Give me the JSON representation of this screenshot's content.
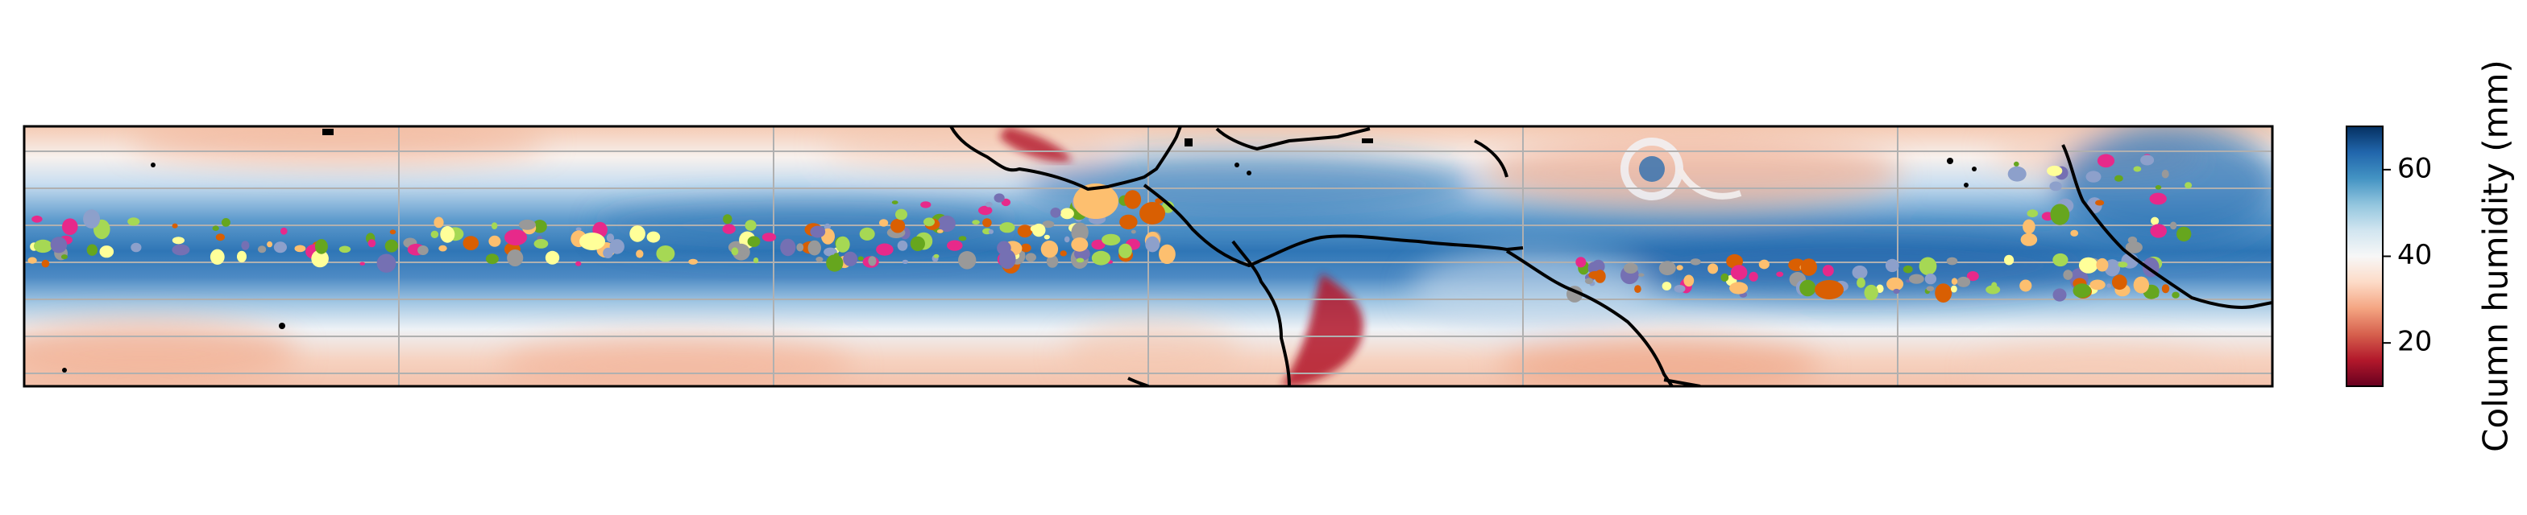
{
  "map": {
    "field": "column humidity",
    "projection": "equatorial strip, Pacific to Atlantic",
    "gridlines": true,
    "gridline_color": "#b0b0b0",
    "coastline_color": "#000000",
    "cloud_object_colors": [
      "#8da0cb",
      "#a6d854",
      "#e7298a",
      "#d95f02",
      "#ffff99",
      "#66a61e",
      "#fdbf6f",
      "#7570b3",
      "#999999"
    ]
  },
  "colorbar": {
    "label": "Column humidity (mm)",
    "ticks": [
      "20",
      "40",
      "60"
    ],
    "tick_values": [
      20,
      40,
      60
    ],
    "range": [
      10,
      70
    ],
    "colormap": "RdBu",
    "colors": [
      "#67001f",
      "#b2182b",
      "#d6604d",
      "#f4a582",
      "#fddbc7",
      "#f7f7f7",
      "#d1e5f0",
      "#92c5de",
      "#4393c3",
      "#2166ac",
      "#053061"
    ]
  }
}
